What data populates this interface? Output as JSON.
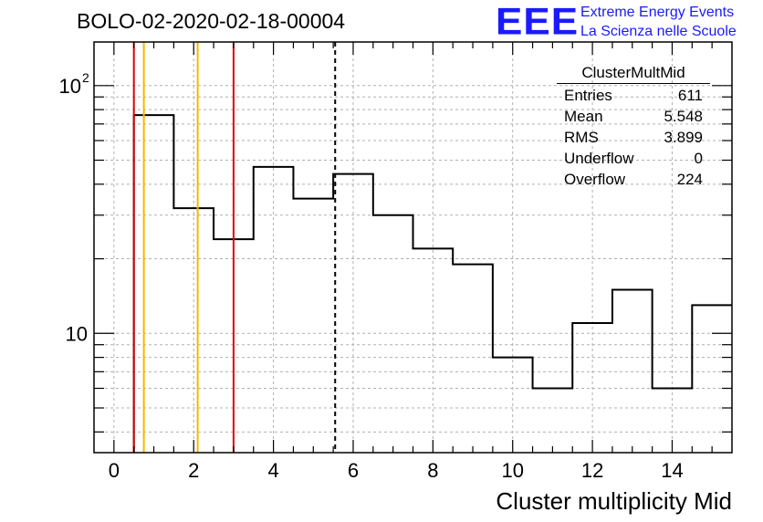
{
  "title": "BOLO-02-2020-02-18-00004",
  "logo": {
    "mark": "EEE",
    "line1": "Extreme Energy Events",
    "line2": "La Scienza nelle Scuole",
    "color": "#1a1aff"
  },
  "stats": {
    "name": "ClusterMultMid",
    "rows": [
      {
        "label": "Entries",
        "value": "611"
      },
      {
        "label": "Mean",
        "value": "5.548"
      },
      {
        "label": "RMS",
        "value": "3.899"
      },
      {
        "label": "Underflow",
        "value": "0"
      },
      {
        "label": "Overflow",
        "value": "224"
      }
    ]
  },
  "chart_data": {
    "type": "histogram",
    "xlabel": "Cluster multiplicity Mid",
    "ylabel": "",
    "xlim": [
      -0.5,
      15.5
    ],
    "ylim": [
      3.3,
      150
    ],
    "yscale": "log",
    "grid": true,
    "bin_edges": [
      0.5,
      1.5,
      2.5,
      3.5,
      4.5,
      5.5,
      6.5,
      7.5,
      8.5,
      9.5,
      10.5,
      11.5,
      12.5,
      13.5,
      14.5,
      15.5
    ],
    "values": [
      76,
      32,
      24,
      47,
      35,
      44,
      30,
      22,
      19,
      8,
      6,
      11,
      15,
      6,
      13
    ],
    "x_ticks": [
      "0",
      "2",
      "4",
      "6",
      "8",
      "10",
      "12",
      "14"
    ],
    "y_ticks": [
      {
        "value": 10,
        "label": "10"
      },
      {
        "value": 100,
        "label": "10",
        "exp": "2"
      }
    ],
    "vertical_lines": [
      {
        "x": 0.5,
        "color": "#e00000",
        "style": "solid"
      },
      {
        "x": 0.75,
        "color": "#f5b800",
        "style": "solid"
      },
      {
        "x": 2.1,
        "color": "#f5b800",
        "style": "solid"
      },
      {
        "x": 3.0,
        "color": "#e00000",
        "style": "solid"
      },
      {
        "x": 5.548,
        "color": "#000000",
        "style": "dashed"
      }
    ]
  }
}
